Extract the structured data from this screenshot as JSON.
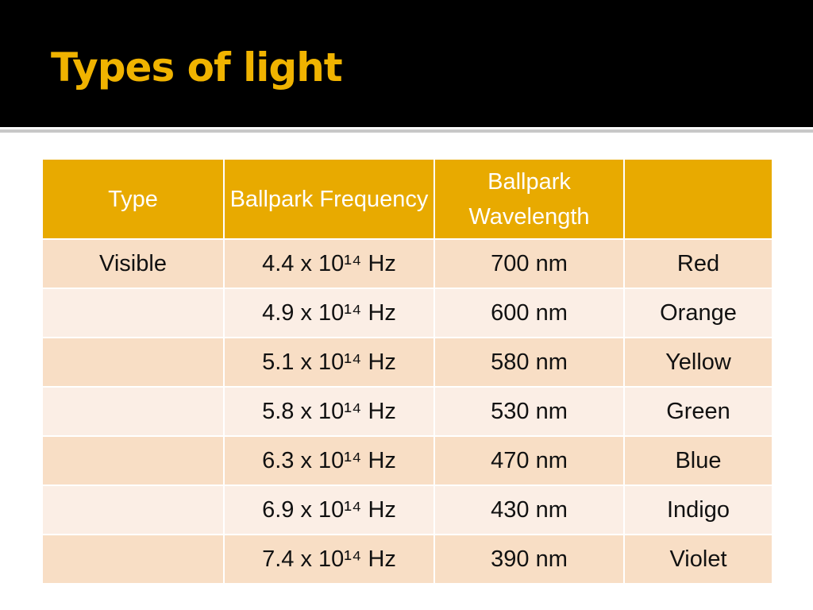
{
  "header": {
    "title": "Types of light"
  },
  "table": {
    "columns": [
      "Type",
      "Ballpark Frequency",
      "Ballpark Wavelength"
    ],
    "rows": [
      {
        "type": "Visible",
        "frequency": "4.4 x 10¹⁴ Hz",
        "wavelength": "700 nm",
        "color": "Red"
      },
      {
        "frequency": "4.9 x 10¹⁴ Hz",
        "wavelength": "600 nm",
        "color": "Orange"
      },
      {
        "frequency": "5.1 x 10¹⁴ Hz",
        "wavelength": "580 nm",
        "color": "Yellow"
      },
      {
        "frequency": "5.8 x 10¹⁴ Hz",
        "wavelength": "530 nm",
        "color": "Green"
      },
      {
        "frequency": "6.3 x 10¹⁴ Hz",
        "wavelength": "470 nm",
        "color": "Blue"
      },
      {
        "frequency": "6.9 x 10¹⁴ Hz",
        "wavelength": "430 nm",
        "color": "Indigo"
      },
      {
        "frequency": "7.4 x 10¹⁴ Hz",
        "wavelength": "390 nm",
        "color": "Violet"
      }
    ]
  }
}
